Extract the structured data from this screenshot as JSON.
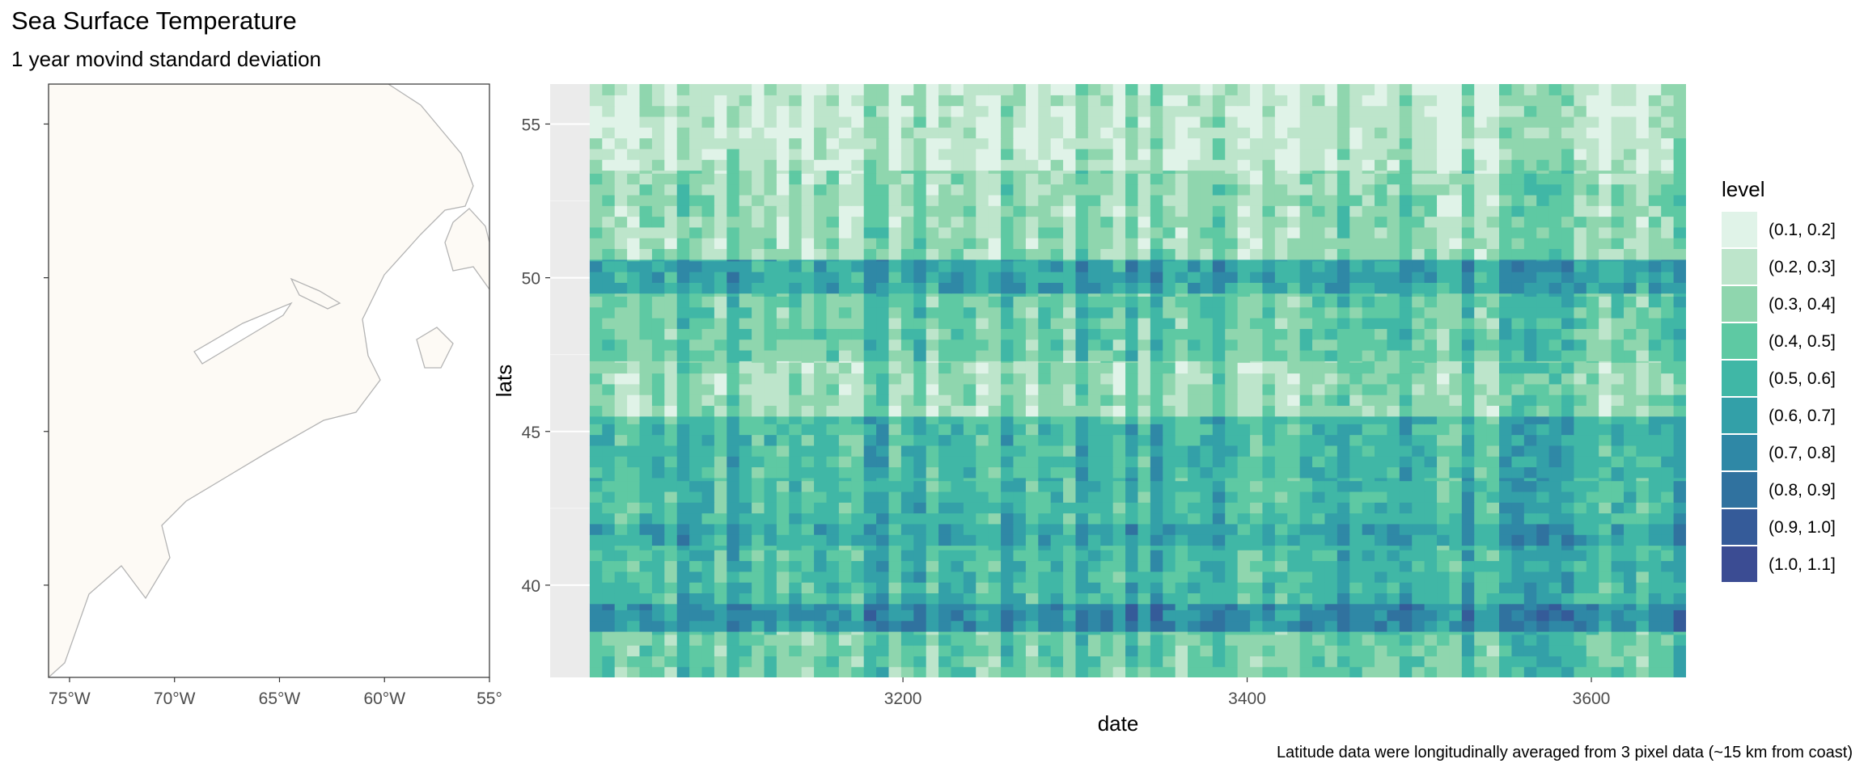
{
  "chart_data": [
    {
      "type": "map",
      "panel": "coastline",
      "x_ticks": [
        "75°W",
        "70°W",
        "65°W",
        "60°W",
        "55°"
      ],
      "x_tick_values": [
        -75,
        -70,
        -65,
        -60,
        -55
      ],
      "xlim": [
        -76,
        -55
      ],
      "ylim": [
        37,
        56.3
      ],
      "y_tick_values": [
        40,
        45,
        50,
        55
      ],
      "land_color": "#fdfaf5",
      "coast_color": "#b4b4b4",
      "grid": false
    },
    {
      "type": "heatmap",
      "title": "Sea Surface Temperature",
      "subtitle": "1 year movind standard deviation",
      "xlabel": "date",
      "ylabel": "lats",
      "xlim": [
        2995,
        3655
      ],
      "ylim": [
        37,
        56.3
      ],
      "x_ticks": [
        3200,
        3400,
        3600
      ],
      "y_ticks": [
        40,
        45,
        50,
        55
      ],
      "data_x_range": [
        3018,
        3655
      ],
      "legend_title": "level",
      "legend_position": "right",
      "levels": [
        "(0.1, 0.2]",
        "(0.2, 0.3]",
        "(0.3, 0.4]",
        "(0.4, 0.5]",
        "(0.5, 0.6]",
        "(0.6, 0.7]",
        "(0.7, 0.8]",
        "(0.8, 0.9]",
        "(0.9, 1.0]",
        "(1.0, 1.1]"
      ],
      "colors": [
        "#e0f3e8",
        "#bde5cb",
        "#8fd6ae",
        "#5ec9a3",
        "#40b7a6",
        "#33a0a8",
        "#2f88a6",
        "#30729f",
        "#355b99",
        "#3b4c93"
      ],
      "latitude_band_levels": [
        {
          "lat_min": 37.0,
          "lat_max": 38.5,
          "level": 3
        },
        {
          "lat_min": 38.5,
          "lat_max": 39.4,
          "level": 6
        },
        {
          "lat_min": 39.4,
          "lat_max": 41.3,
          "level": 4
        },
        {
          "lat_min": 41.3,
          "lat_max": 42.0,
          "level": 5
        },
        {
          "lat_min": 42.0,
          "lat_max": 43.5,
          "level": 4
        },
        {
          "lat_min": 43.5,
          "lat_max": 45.5,
          "level": 4
        },
        {
          "lat_min": 45.5,
          "lat_max": 47.3,
          "level": 2
        },
        {
          "lat_min": 47.3,
          "lat_max": 49.5,
          "level": 3
        },
        {
          "lat_min": 49.5,
          "lat_max": 50.6,
          "level": 5
        },
        {
          "lat_min": 50.6,
          "lat_max": 53.5,
          "level": 2
        },
        {
          "lat_min": 53.5,
          "lat_max": 56.3,
          "level": 1
        }
      ],
      "caption": "Latitude data were longitudinally averaged from 3 pixel data (~15 km from coast)"
    }
  ]
}
